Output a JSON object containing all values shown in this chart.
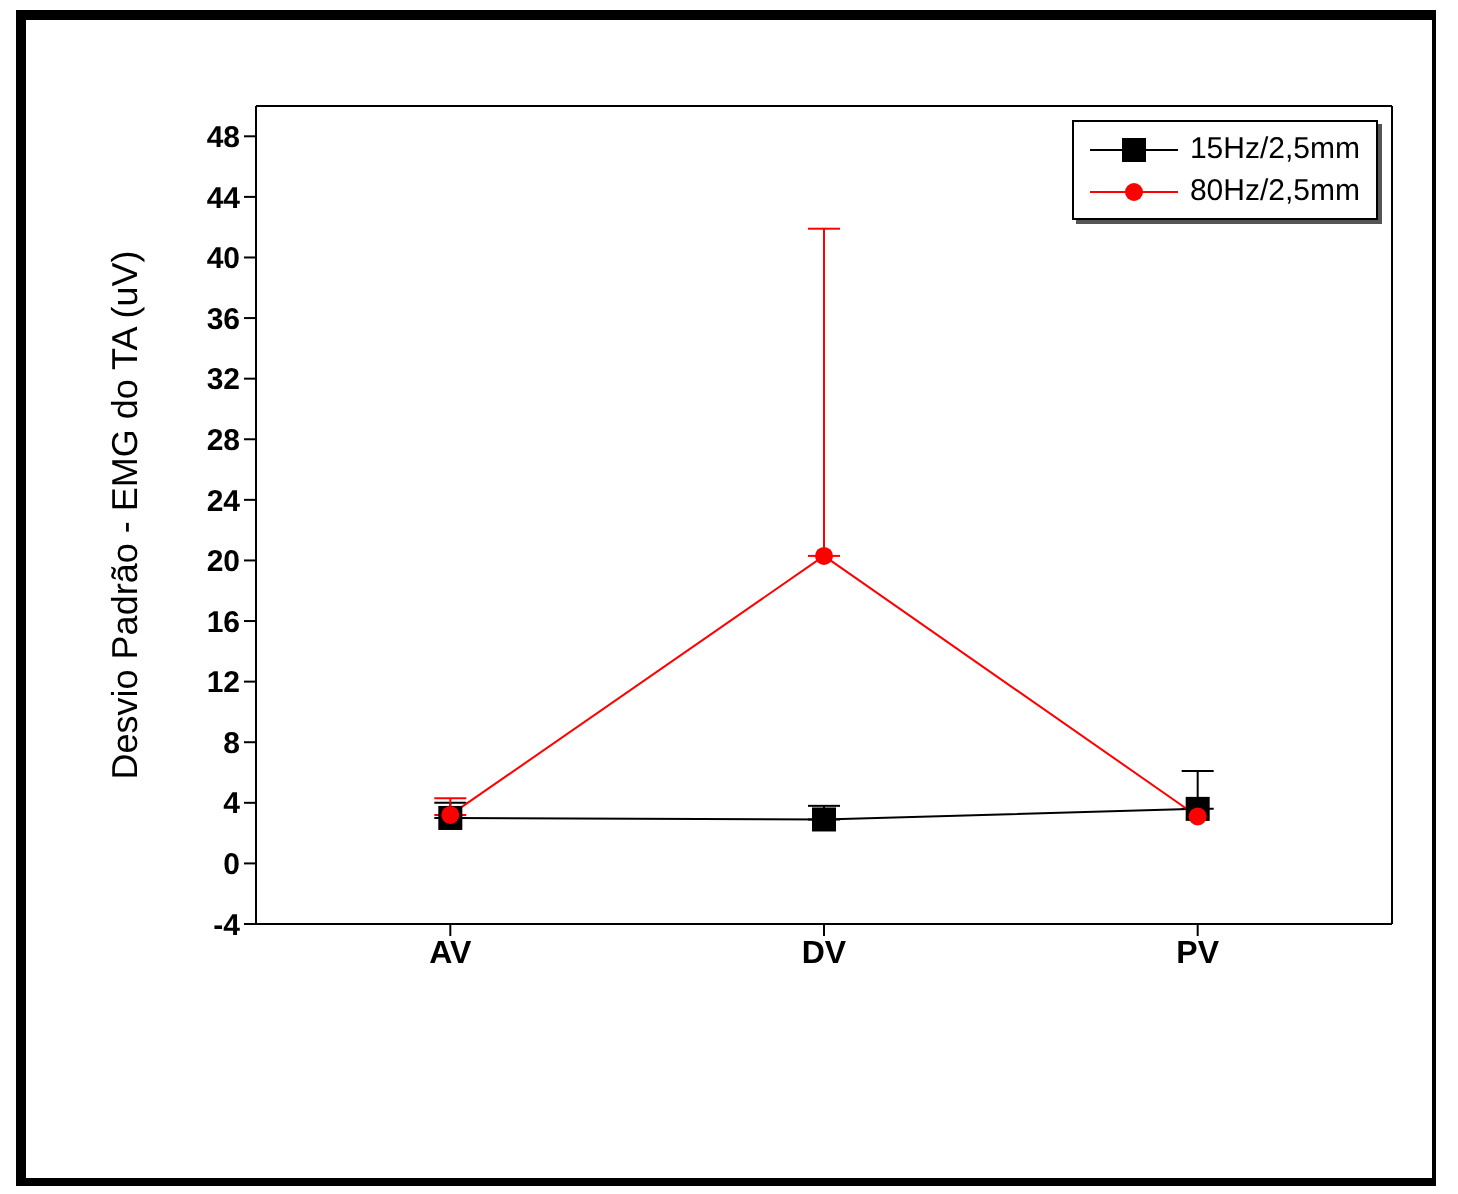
{
  "chart_data": {
    "type": "line",
    "ylabel": "Desvio Padrão - EMG do TA (uV)",
    "categories": [
      "AV",
      "DV",
      "PV"
    ],
    "series": [
      {
        "name": "15Hz/2,5mm",
        "color": "#000000",
        "marker": "square",
        "values": [
          3.0,
          2.9,
          3.6
        ],
        "errors": [
          [
            3.0,
            4.0
          ],
          [
            2.9,
            3.8
          ],
          [
            3.6,
            6.1
          ]
        ]
      },
      {
        "name": "80Hz/2,5mm",
        "color": "#ff0000",
        "marker": "circle",
        "values": [
          3.2,
          20.3,
          3.1
        ],
        "errors": [
          [
            3.2,
            4.3
          ],
          [
            20.3,
            41.9
          ],
          null
        ]
      }
    ],
    "ylim": [
      -4,
      50
    ],
    "yticks": [
      -4,
      0,
      4,
      8,
      12,
      16,
      20,
      24,
      28,
      32,
      36,
      40,
      44,
      48
    ],
    "legend": "top right",
    "grid": false
  }
}
